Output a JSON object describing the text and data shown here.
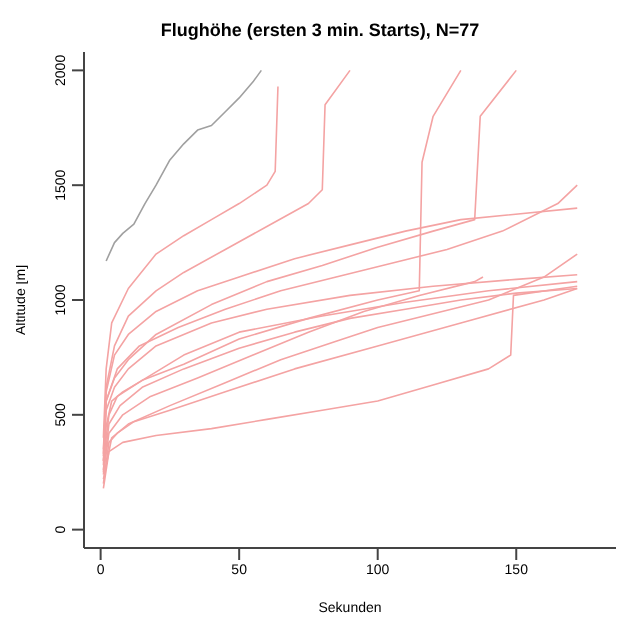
{
  "chart_data": {
    "type": "line",
    "title": "Flughöhe (ersten 3 min. Starts), N=77",
    "xlabel": "Sekunden",
    "ylabel": "Altitude [m]",
    "xlim": [
      -6,
      186
    ],
    "ylim": [
      -80,
      2080
    ],
    "xticks": [
      0,
      50,
      100,
      150
    ],
    "yticks": [
      0,
      500,
      1000,
      1500,
      2000
    ],
    "marker": "none",
    "series": [
      {
        "color": "#a0a0a0",
        "x": [
          2,
          5,
          8,
          12,
          16,
          20,
          25,
          30,
          35,
          40,
          45,
          50,
          55,
          58
        ],
        "values": [
          1170,
          1250,
          1290,
          1330,
          1420,
          1500,
          1610,
          1680,
          1740,
          1760,
          1820,
          1880,
          1950,
          2000
        ]
      },
      {
        "color": "#f4a3a3",
        "x": [
          1,
          2,
          4,
          8,
          15,
          30,
          50,
          80,
          110,
          140,
          172
        ],
        "values": [
          250,
          450,
          560,
          600,
          650,
          760,
          860,
          930,
          990,
          1040,
          1080
        ]
      },
      {
        "color": "#f4a3a3",
        "x": [
          1,
          2,
          5,
          10,
          20,
          40,
          60,
          90,
          120,
          150,
          172
        ],
        "values": [
          300,
          520,
          620,
          700,
          800,
          900,
          960,
          1020,
          1060,
          1090,
          1110
        ]
      },
      {
        "color": "#f4a3a3",
        "x": [
          1,
          3,
          6,
          12,
          25,
          45,
          70,
          100,
          130,
          160,
          172
        ],
        "values": [
          200,
          380,
          420,
          470,
          520,
          600,
          700,
          800,
          900,
          1000,
          1050
        ]
      },
      {
        "color": "#f4a3a3",
        "x": [
          1,
          3,
          8,
          20,
          40,
          60,
          80,
          100,
          120,
          140,
          148,
          149,
          172
        ],
        "values": [
          180,
          340,
          380,
          410,
          440,
          480,
          520,
          560,
          630,
          700,
          760,
          1020,
          1060
        ]
      },
      {
        "color": "#f4a3a3",
        "x": [
          1,
          2,
          5,
          10,
          20,
          35,
          50,
          70,
          90,
          110,
          130,
          172
        ],
        "values": [
          350,
          600,
          760,
          850,
          950,
          1040,
          1100,
          1180,
          1240,
          1300,
          1350,
          1400
        ]
      },
      {
        "color": "#f4a3a3",
        "x": [
          1,
          2,
          4,
          10,
          20,
          30,
          40,
          50,
          60,
          63,
          64
        ],
        "values": [
          400,
          700,
          900,
          1050,
          1200,
          1280,
          1350,
          1420,
          1500,
          1560,
          1930
        ]
      },
      {
        "color": "#f4a3a3",
        "x": [
          1,
          3,
          6,
          15,
          30,
          50,
          75,
          100,
          115,
          116,
          120,
          130
        ],
        "values": [
          300,
          500,
          580,
          650,
          720,
          830,
          920,
          1000,
          1040,
          1600,
          1800,
          2000
        ]
      },
      {
        "color": "#f4a3a3",
        "x": [
          1,
          3,
          7,
          15,
          30,
          50,
          70,
          90,
          110,
          130,
          150,
          172
        ],
        "values": [
          260,
          460,
          540,
          620,
          700,
          790,
          860,
          920,
          960,
          1000,
          1030,
          1050
        ]
      },
      {
        "color": "#f4a3a3",
        "x": [
          1,
          2,
          5,
          10,
          20,
          40,
          60,
          80,
          100,
          120,
          135,
          137,
          150
        ],
        "values": [
          320,
          560,
          660,
          740,
          850,
          980,
          1080,
          1150,
          1230,
          1300,
          1350,
          1800,
          2000
        ]
      },
      {
        "color": "#f4a3a3",
        "x": [
          1,
          4,
          10,
          25,
          45,
          65,
          85,
          100,
          120,
          140,
          160,
          172
        ],
        "values": [
          220,
          400,
          460,
          540,
          640,
          740,
          820,
          880,
          940,
          1000,
          1100,
          1200
        ]
      },
      {
        "color": "#f4a3a3",
        "x": [
          1,
          2,
          6,
          14,
          28,
          45,
          65,
          85,
          105,
          125,
          145,
          165,
          172
        ],
        "values": [
          280,
          560,
          700,
          800,
          880,
          960,
          1040,
          1100,
          1160,
          1220,
          1300,
          1420,
          1500
        ]
      },
      {
        "color": "#f4a3a3",
        "x": [
          1,
          2,
          5,
          10,
          20,
          30,
          45,
          60,
          75,
          80,
          81,
          90
        ],
        "values": [
          330,
          620,
          800,
          930,
          1040,
          1120,
          1220,
          1320,
          1420,
          1480,
          1850,
          2000
        ]
      },
      {
        "color": "#f4a3a3",
        "x": [
          1,
          3,
          8,
          18,
          35,
          55,
          75,
          95,
          115,
          135,
          138
        ],
        "values": [
          240,
          420,
          500,
          580,
          660,
          760,
          860,
          950,
          1020,
          1080,
          1100
        ]
      }
    ]
  }
}
